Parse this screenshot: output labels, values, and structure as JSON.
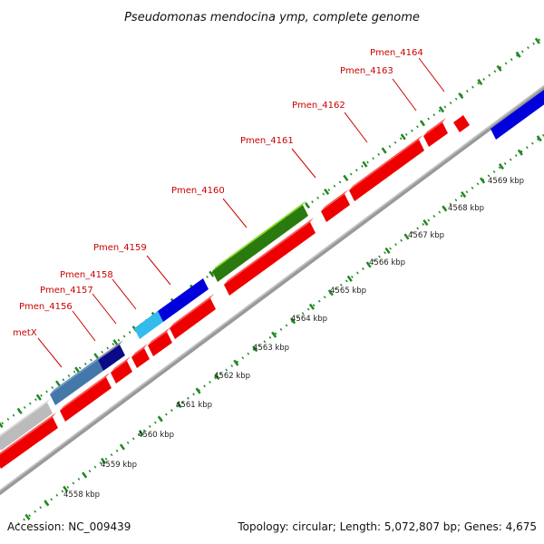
{
  "title": "Pseudomonas mendocina ymp, complete genome",
  "footer": {
    "accession": "Accession: NC_009439",
    "topology": "Topology: circular; Length: 5,072,807 bp; Genes: 4,675"
  },
  "colors": {
    "cds_red": "#ee0000",
    "backbone": "#888888",
    "tick_green": "#228822",
    "label_red": "#cc0000",
    "gene_blue": "#0000dd",
    "gene_lightblue": "#33bbee",
    "gene_lightgreen": "#88dd22",
    "gene_steelblue": "#4477aa",
    "gene_navy": "#0a0a88",
    "gene_grey": "#bbbbbb"
  },
  "gene_labels": [
    {
      "text": "metX"
    },
    {
      "text": "Pmen_4156"
    },
    {
      "text": "Pmen_4157"
    },
    {
      "text": "Pmen_4158"
    },
    {
      "text": "Pmen_4159"
    },
    {
      "text": "Pmen_4160"
    },
    {
      "text": "Pmen_4161"
    },
    {
      "text": "Pmen_4162"
    },
    {
      "text": "Pmen_4163"
    },
    {
      "text": "Pmen_4164"
    }
  ],
  "kbp_labels": [
    {
      "text": "4558 kbp"
    },
    {
      "text": "4559 kbp"
    },
    {
      "text": "4560 kbp"
    },
    {
      "text": "4561 kbp"
    },
    {
      "text": "4562 kbp"
    },
    {
      "text": "4563 kbp"
    },
    {
      "text": "4564 kbp"
    },
    {
      "text": "4565 kbp"
    },
    {
      "text": "4566 kbp"
    },
    {
      "text": "4567 kbp"
    },
    {
      "text": "4568 kbp"
    },
    {
      "text": "4569 kbp"
    }
  ]
}
